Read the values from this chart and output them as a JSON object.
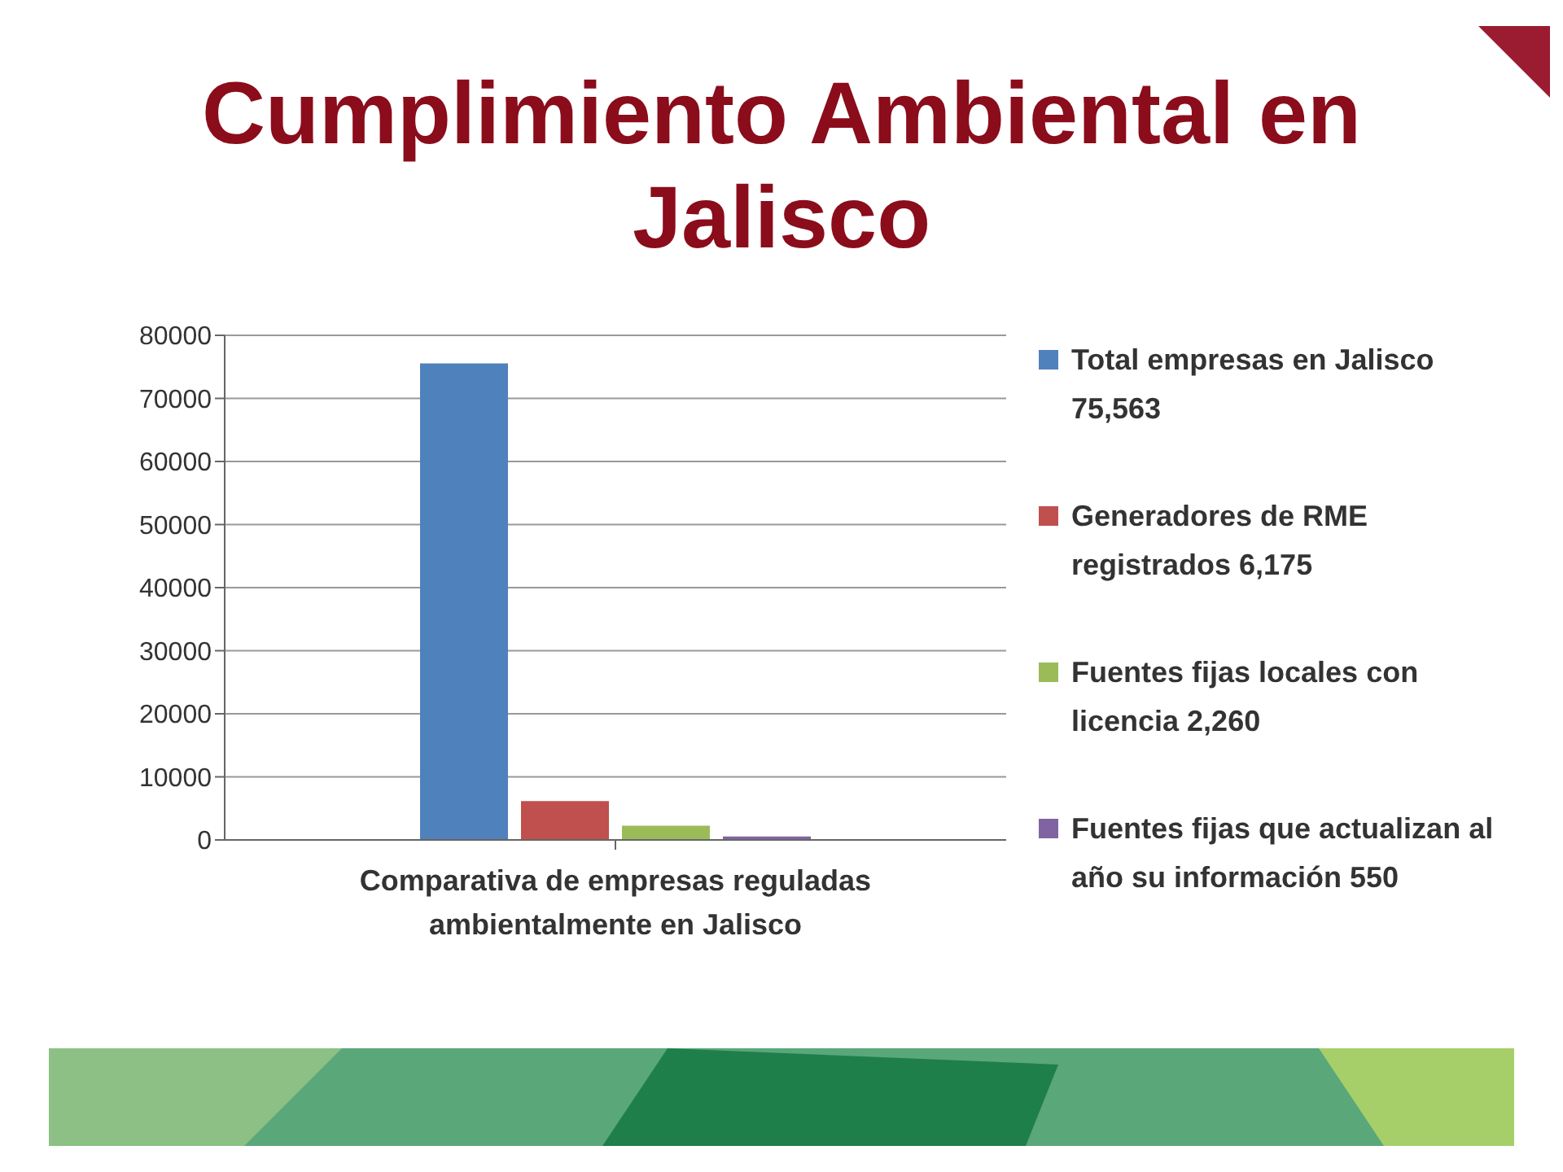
{
  "chart_data": {
    "type": "bar",
    "title": "Cumplimiento Ambiental en Jalisco",
    "categories": [
      "Comparativa de empresas reguladas ambientalmente en Jalisco"
    ],
    "series": [
      {
        "name": "Total empresas en Jalisco 75,563",
        "color": "#4f81bd",
        "values": [
          75563
        ]
      },
      {
        "name": "Generadores de RME registrados 6,175",
        "color": "#c0504d",
        "values": [
          6175
        ]
      },
      {
        "name": "Fuentes fijas locales con licencia 2,260",
        "color": "#9bbb59",
        "values": [
          2260
        ]
      },
      {
        "name": "Fuentes fijas que actualizan al año su información 550",
        "color": "#8064a2",
        "values": [
          550
        ]
      }
    ],
    "ylim": [
      0,
      80000
    ],
    "yticks": [
      0,
      10000,
      20000,
      30000,
      40000,
      50000,
      60000,
      70000,
      80000
    ],
    "grid": "y",
    "legend": "right"
  }
}
